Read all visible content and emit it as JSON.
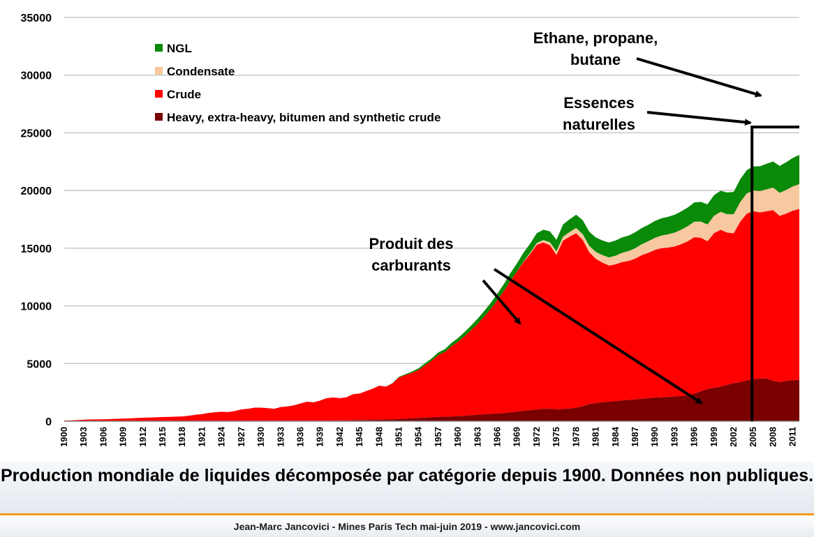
{
  "chart_data": {
    "type": "area",
    "stacked": true,
    "title": "",
    "xlabel": "",
    "ylabel": "",
    "ylim": [
      0,
      35000
    ],
    "y_ticks": [
      0,
      5000,
      10000,
      15000,
      20000,
      25000,
      30000,
      35000
    ],
    "x_tick_labels": [
      "1900",
      "1903",
      "1906",
      "1909",
      "1912",
      "1915",
      "1918",
      "1921",
      "1924",
      "1927",
      "1930",
      "1933",
      "1936",
      "1939",
      "1942",
      "1945",
      "1948",
      "1951",
      "1954",
      "1957",
      "1960",
      "1963",
      "1966",
      "1969",
      "1972",
      "1975",
      "1978",
      "1981",
      "1984",
      "1987",
      "1990",
      "1993",
      "1996",
      "1999",
      "2002",
      "2005",
      "2008",
      "2011"
    ],
    "grid": "horizontal",
    "legend_position": "top-left",
    "x": [
      1900,
      1901,
      1902,
      1903,
      1904,
      1905,
      1906,
      1907,
      1908,
      1909,
      1910,
      1911,
      1912,
      1913,
      1914,
      1915,
      1916,
      1917,
      1918,
      1919,
      1920,
      1921,
      1922,
      1923,
      1924,
      1925,
      1926,
      1927,
      1928,
      1929,
      1930,
      1931,
      1932,
      1933,
      1934,
      1935,
      1936,
      1937,
      1938,
      1939,
      1940,
      1941,
      1942,
      1943,
      1944,
      1945,
      1946,
      1947,
      1948,
      1949,
      1950,
      1951,
      1952,
      1953,
      1954,
      1955,
      1956,
      1957,
      1958,
      1959,
      1960,
      1961,
      1962,
      1963,
      1964,
      1965,
      1966,
      1967,
      1968,
      1969,
      1970,
      1971,
      1972,
      1973,
      1974,
      1975,
      1976,
      1977,
      1978,
      1979,
      1980,
      1981,
      1982,
      1983,
      1984,
      1985,
      1986,
      1987,
      1988,
      1989,
      1990,
      1991,
      1992,
      1993,
      1994,
      1995,
      1996,
      1997,
      1998,
      1999,
      2000,
      2001,
      2002,
      2003,
      2004,
      2005,
      2006,
      2007,
      2008,
      2009,
      2010,
      2011,
      2012
    ],
    "series": [
      {
        "name": "Heavy, extra-heavy, bitumen and synthetic crude",
        "color": "#7a0000",
        "values": [
          0,
          0,
          0,
          0,
          0,
          0,
          0,
          0,
          0,
          0,
          0,
          0,
          0,
          0,
          0,
          0,
          0,
          0,
          0,
          0,
          20,
          20,
          20,
          20,
          25,
          25,
          25,
          30,
          30,
          30,
          30,
          30,
          30,
          35,
          35,
          35,
          40,
          40,
          40,
          45,
          50,
          60,
          70,
          80,
          90,
          100,
          110,
          120,
          130,
          150,
          170,
          200,
          230,
          260,
          290,
          320,
          350,
          380,
          400,
          420,
          450,
          480,
          520,
          560,
          600,
          640,
          680,
          720,
          780,
          840,
          900,
          960,
          1020,
          1080,
          1080,
          1040,
          1060,
          1100,
          1180,
          1300,
          1500,
          1580,
          1650,
          1700,
          1750,
          1800,
          1850,
          1900,
          1950,
          2000,
          2050,
          2080,
          2100,
          2150,
          2180,
          2250,
          2400,
          2600,
          2800,
          2900,
          3000,
          3150,
          3300,
          3400,
          3550,
          3650,
          3700,
          3700,
          3500,
          3400,
          3500,
          3550,
          3600
        ]
      },
      {
        "name": "Crude",
        "color": "#ff0000",
        "values": [
          60,
          80,
          100,
          130,
          150,
          160,
          170,
          190,
          210,
          230,
          250,
          280,
          300,
          320,
          340,
          360,
          380,
          400,
          420,
          480,
          540,
          600,
          700,
          760,
          800,
          780,
          860,
          1000,
          1050,
          1150,
          1150,
          1100,
          1050,
          1200,
          1250,
          1350,
          1500,
          1650,
          1600,
          1750,
          1950,
          2000,
          1930,
          2000,
          2250,
          2300,
          2500,
          2700,
          2950,
          2850,
          3100,
          3600,
          3770,
          3940,
          4160,
          4530,
          4910,
          5370,
          5600,
          6080,
          6450,
          6890,
          7380,
          7890,
          8480,
          9110,
          9820,
          10580,
          11420,
          12160,
          12930,
          13540,
          14280,
          14420,
          14180,
          13380,
          14590,
          14900,
          15120,
          14420,
          13150,
          12500,
          12100,
          11800,
          11850,
          12000,
          12050,
          12200,
          12450,
          12600,
          12800,
          12920,
          12950,
          13000,
          13170,
          13350,
          13550,
          13300,
          12800,
          13400,
          13600,
          13200,
          13000,
          13900,
          14450,
          14550,
          14400,
          14500,
          14800,
          14400,
          14500,
          14700,
          14800
        ]
      },
      {
        "name": "Condensate",
        "color": "#f8c8a0",
        "values": [
          0,
          0,
          0,
          0,
          0,
          0,
          0,
          0,
          0,
          0,
          0,
          0,
          0,
          0,
          0,
          0,
          0,
          0,
          0,
          0,
          0,
          0,
          0,
          0,
          0,
          0,
          0,
          0,
          0,
          0,
          0,
          0,
          0,
          0,
          0,
          0,
          0,
          0,
          0,
          0,
          0,
          0,
          0,
          0,
          0,
          0,
          0,
          0,
          0,
          0,
          0,
          0,
          0,
          0,
          0,
          0,
          0,
          0,
          0,
          0,
          0,
          0,
          0,
          0,
          0,
          0,
          0,
          0,
          0,
          0,
          50,
          100,
          150,
          200,
          250,
          300,
          350,
          400,
          450,
          500,
          550,
          600,
          650,
          700,
          750,
          800,
          850,
          900,
          950,
          1000,
          1050,
          1100,
          1150,
          1200,
          1250,
          1300,
          1350,
          1400,
          1450,
          1500,
          1550,
          1600,
          1650,
          1700,
          1750,
          1800,
          1850,
          1900,
          1950,
          2000,
          2050,
          2100,
          2150
        ]
      },
      {
        "name": "NGL",
        "color": "#098a09",
        "values": [
          0,
          0,
          0,
          0,
          0,
          0,
          0,
          0,
          0,
          0,
          0,
          0,
          0,
          0,
          0,
          0,
          0,
          0,
          0,
          0,
          0,
          0,
          0,
          0,
          0,
          0,
          0,
          0,
          0,
          0,
          0,
          0,
          0,
          0,
          0,
          0,
          0,
          0,
          0,
          0,
          0,
          0,
          0,
          0,
          0,
          0,
          0,
          0,
          0,
          0,
          30,
          50,
          80,
          110,
          150,
          180,
          200,
          220,
          250,
          280,
          320,
          360,
          400,
          440,
          480,
          520,
          560,
          600,
          650,
          700,
          750,
          800,
          850,
          900,
          950,
          1000,
          1050,
          1100,
          1150,
          1200,
          1230,
          1250,
          1270,
          1290,
          1310,
          1330,
          1350,
          1380,
          1400,
          1430,
          1460,
          1490,
          1520,
          1550,
          1590,
          1630,
          1670,
          1710,
          1750,
          1790,
          1830,
          1880,
          1930,
          1980,
          2030,
          2090,
          2150,
          2210,
          2270,
          2330,
          2400,
          2470,
          2540
        ]
      }
    ],
    "legend": [
      {
        "label": "NGL",
        "color": "#098a09"
      },
      {
        "label": "Condensate",
        "color": "#f8c8a0"
      },
      {
        "label": "Crude",
        "color": "#ff0000"
      },
      {
        "label": "Heavy, extra-heavy, bitumen and synthetic crude",
        "color": "#7a0000"
      }
    ],
    "annotations": [
      {
        "id": "ethane",
        "lines": [
          "Ethane, propane,",
          "butane"
        ]
      },
      {
        "id": "essences",
        "lines": [
          "Essences",
          "naturelles"
        ]
      },
      {
        "id": "produit",
        "lines": [
          "Produit des",
          "carburants"
        ]
      }
    ],
    "marker_year": 2005,
    "marker_value": 25500
  },
  "caption": {
    "text": "Production mondiale de liquides décomposée par catégorie depuis 1900. Données non publiques."
  },
  "footer": {
    "text": "Jean-Marc Jancovici - Mines Paris Tech mai-juin 2019 - www.jancovici.com"
  }
}
